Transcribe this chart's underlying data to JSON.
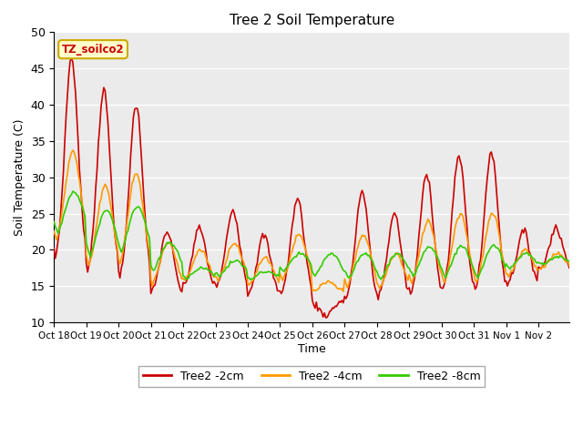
{
  "title": "Tree 2 Soil Temperature",
  "xlabel": "Time",
  "ylabel": "Soil Temperature (C)",
  "ylim": [
    10,
    50
  ],
  "yticks": [
    10,
    15,
    20,
    25,
    30,
    35,
    40,
    45,
    50
  ],
  "legend_labels": [
    "Tree2 -2cm",
    "Tree2 -4cm",
    "Tree2 -8cm"
  ],
  "legend_colors": [
    "#cc0000",
    "#ff9900",
    "#33cc00"
  ],
  "annotation_text": "TZ_soilco2",
  "annotation_bg": "#ffffcc",
  "annotation_border": "#ccaa00",
  "plot_bg": "#ebebeb",
  "line_colors": [
    "#cc0000",
    "#ff9900",
    "#33cc00"
  ],
  "line_width": 1.2,
  "xtick_labels": [
    "Oct 18",
    "Oct 19",
    "Oct 20",
    "Oct 21",
    "Oct 22",
    "Oct 23",
    "Oct 24",
    "Oct 25",
    "Oct 26",
    "Oct 27",
    "Oct 28",
    "Oct 29",
    "Oct 30",
    "Oct 31",
    "Nov 1",
    "Nov 2"
  ]
}
